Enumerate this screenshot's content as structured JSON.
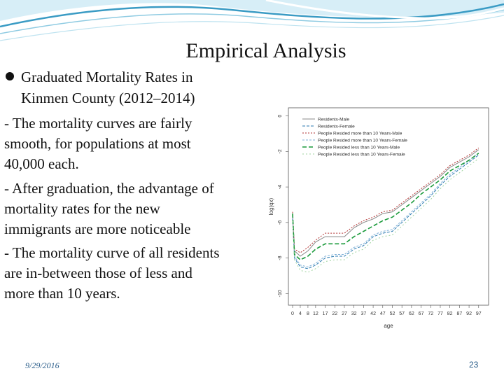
{
  "slide": {
    "title": "Empirical Analysis",
    "bullet": "Graduated Mortality Rates in",
    "bullet_sub": "Kinmen County (2012–2014)",
    "paragraphs": [
      [
        "- The mortality curves are fairly",
        "smooth, for populations at most",
        "40,000 each."
      ],
      [
        "- After graduation, the advantage of",
        "mortality rates for the new",
        "immigrants are more noticeable"
      ],
      [
        "- The mortality curve of all residents",
        "are in-between those of less and",
        "more than 10 years."
      ]
    ],
    "footer_date": "9/29/2016",
    "page_number": "23"
  },
  "colors": {
    "swoosh_dark": "#3a9bc4",
    "swoosh_light": "#bfe3f0",
    "footer_text": "#2a5d8a"
  },
  "chart_data": {
    "type": "line",
    "xlabel": "age",
    "ylabel": "log(qx)",
    "xlim": [
      0,
      100
    ],
    "ylim": [
      -10.5,
      0.3
    ],
    "xticks": [
      0,
      4,
      8,
      12,
      17,
      22,
      27,
      32,
      37,
      42,
      47,
      52,
      57,
      62,
      67,
      72,
      77,
      82,
      87,
      92,
      97
    ],
    "yticks": [
      0,
      -2,
      -4,
      -6,
      -8,
      -10
    ],
    "legend_position": "top-left",
    "grid": false,
    "series": [
      {
        "name": "Residents-Male",
        "color": "#888888",
        "dash": "",
        "width": 1,
        "x": [
          0,
          1,
          4,
          8,
          12,
          17,
          22,
          27,
          32,
          37,
          42,
          47,
          52,
          57,
          62,
          67,
          72,
          77,
          82,
          87,
          92,
          97
        ],
        "y": [
          -5.6,
          -7.6,
          -7.9,
          -7.6,
          -7.1,
          -6.8,
          -6.8,
          -6.8,
          -6.3,
          -6.0,
          -5.8,
          -5.5,
          -5.4,
          -5.0,
          -4.6,
          -4.2,
          -3.8,
          -3.4,
          -2.9,
          -2.6,
          -2.3,
          -1.9
        ]
      },
      {
        "name": "Residents-Female",
        "color": "#2a7ab0",
        "dash": "4,2",
        "width": 1,
        "x": [
          0,
          1,
          4,
          8,
          12,
          17,
          22,
          27,
          32,
          37,
          42,
          47,
          52,
          57,
          62,
          67,
          72,
          77,
          82,
          87,
          92,
          97
        ],
        "y": [
          -5.8,
          -8.0,
          -8.5,
          -8.6,
          -8.4,
          -8.0,
          -7.9,
          -7.9,
          -7.5,
          -7.3,
          -6.8,
          -6.6,
          -6.5,
          -6.0,
          -5.5,
          -5.0,
          -4.5,
          -3.9,
          -3.4,
          -3.0,
          -2.6,
          -2.2
        ]
      },
      {
        "name": "People Resided more than 10 Years-Male",
        "color": "#b03030",
        "dash": "2,2",
        "width": 1,
        "x": [
          0,
          1,
          4,
          8,
          12,
          17,
          22,
          27,
          32,
          37,
          42,
          47,
          52,
          57,
          62,
          67,
          72,
          77,
          82,
          87,
          92,
          97
        ],
        "y": [
          -5.4,
          -7.5,
          -7.7,
          -7.4,
          -7.0,
          -6.6,
          -6.6,
          -6.6,
          -6.2,
          -5.9,
          -5.7,
          -5.4,
          -5.3,
          -4.9,
          -4.5,
          -4.1,
          -3.7,
          -3.3,
          -2.8,
          -2.5,
          -2.2,
          -1.8
        ]
      },
      {
        "name": "People Resided more than 10 Years-Female",
        "color": "#7fb0d8",
        "dash": "3,2",
        "width": 1,
        "x": [
          0,
          1,
          4,
          8,
          12,
          17,
          22,
          27,
          32,
          37,
          42,
          47,
          52,
          57,
          62,
          67,
          72,
          77,
          82,
          87,
          92,
          97
        ],
        "y": [
          -5.7,
          -7.9,
          -8.4,
          -8.5,
          -8.3,
          -7.9,
          -7.8,
          -7.8,
          -7.4,
          -7.2,
          -6.7,
          -6.5,
          -6.4,
          -5.9,
          -5.4,
          -4.9,
          -4.4,
          -3.8,
          -3.3,
          -2.9,
          -2.5,
          -2.1
        ]
      },
      {
        "name": "People Resided less than 10 Years-Male",
        "color": "#1a9a3a",
        "dash": "6,3",
        "width": 1.6,
        "x": [
          0,
          1,
          4,
          8,
          12,
          17,
          22,
          27,
          32,
          37,
          42,
          47,
          52,
          57,
          62,
          67,
          72,
          77,
          82,
          87,
          92,
          97
        ],
        "y": [
          -5.5,
          -7.8,
          -8.1,
          -7.9,
          -7.5,
          -7.2,
          -7.2,
          -7.2,
          -6.8,
          -6.5,
          -6.2,
          -5.9,
          -5.7,
          -5.3,
          -4.9,
          -4.4,
          -4.0,
          -3.6,
          -3.1,
          -2.8,
          -2.5,
          -2.1
        ]
      },
      {
        "name": "People Resided less than 10 Years-Female",
        "color": "#9fd39f",
        "dash": "2,3",
        "width": 1,
        "x": [
          0,
          1,
          4,
          8,
          12,
          17,
          22,
          27,
          32,
          37,
          42,
          47,
          52,
          57,
          62,
          67,
          72,
          77,
          82,
          87,
          92,
          97
        ],
        "y": [
          -5.9,
          -8.1,
          -8.7,
          -8.8,
          -8.6,
          -8.2,
          -8.1,
          -8.1,
          -7.7,
          -7.5,
          -7.0,
          -6.8,
          -6.7,
          -6.2,
          -5.7,
          -5.2,
          -4.7,
          -4.1,
          -3.6,
          -3.2,
          -2.8,
          -2.4
        ]
      }
    ]
  }
}
